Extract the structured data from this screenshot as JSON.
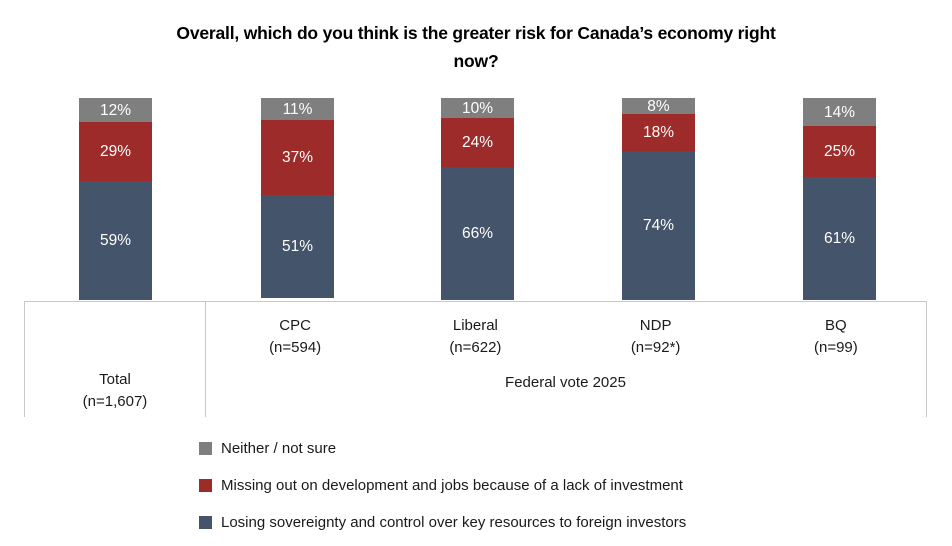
{
  "title": "Overall, which do you think is the greater risk for Canada’s economy right\nnow?",
  "chart_data": {
    "type": "bar",
    "stacked": true,
    "unit": "%",
    "ylim": [
      0,
      100
    ],
    "grid": false,
    "legend_position": "bottom-left",
    "title": "Overall, which do you think is the greater risk for Canada’s economy right now?",
    "group_label": "Federal vote 2025",
    "categories": [
      {
        "label": "Total",
        "n": "(n=1,607)"
      },
      {
        "label": "CPC",
        "n": "(n=594)"
      },
      {
        "label": "Liberal",
        "n": "(n=622)"
      },
      {
        "label": "NDP",
        "n": "(n=92*)"
      },
      {
        "label": "BQ",
        "n": "(n=99)"
      }
    ],
    "series": [
      {
        "name": "Losing sovereignty and control over key resources to foreign investors",
        "color": "#44546A",
        "values": [
          59,
          51,
          66,
          74,
          61
        ]
      },
      {
        "name": "Missing out on development and jobs because of a lack of investment",
        "color": "#9C2B29",
        "values": [
          29,
          37,
          24,
          18,
          25
        ]
      },
      {
        "name": "Neither / not sure",
        "color": "#7F7F7F",
        "values": [
          12,
          11,
          10,
          8,
          14
        ]
      }
    ],
    "legend": [
      {
        "label": "Neither / not sure",
        "color": "#7F7F7F"
      },
      {
        "label": "Missing out on development and jobs because of a lack of investment",
        "color": "#9C2B29"
      },
      {
        "label": "Losing sovereignty and control over key resources to foreign investors",
        "color": "#44546A"
      }
    ]
  }
}
